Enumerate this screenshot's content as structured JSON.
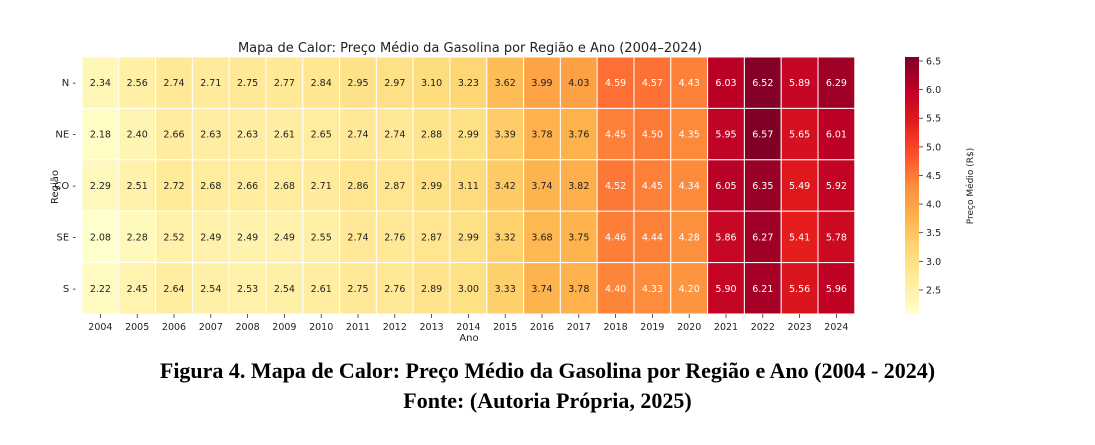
{
  "chart_data": {
    "type": "heatmap",
    "title": "Mapa de Calor: Preço Médio da Gasolina por Região e Ano (2004–2024)",
    "xlabel": "Ano",
    "ylabel": "Região",
    "x": [
      "2004",
      "2005",
      "2006",
      "2007",
      "2008",
      "2009",
      "2010",
      "2011",
      "2012",
      "2013",
      "2014",
      "2015",
      "2016",
      "2017",
      "2018",
      "2019",
      "2020",
      "2021",
      "2022",
      "2023",
      "2024"
    ],
    "y": [
      "N",
      "NE",
      "CO",
      "SE",
      "S"
    ],
    "values": [
      [
        2.34,
        2.56,
        2.74,
        2.71,
        2.75,
        2.77,
        2.84,
        2.95,
        2.97,
        3.1,
        3.23,
        3.62,
        3.99,
        4.03,
        4.59,
        4.57,
        4.43,
        6.03,
        6.52,
        5.89,
        6.29
      ],
      [
        2.18,
        2.4,
        2.66,
        2.63,
        2.63,
        2.61,
        2.65,
        2.74,
        2.74,
        2.88,
        2.99,
        3.39,
        3.78,
        3.76,
        4.45,
        4.5,
        4.35,
        5.95,
        6.57,
        5.65,
        6.01
      ],
      [
        2.29,
        2.51,
        2.72,
        2.68,
        2.66,
        2.68,
        2.71,
        2.86,
        2.87,
        2.99,
        3.11,
        3.42,
        3.74,
        3.82,
        4.52,
        4.45,
        4.34,
        6.05,
        6.35,
        5.49,
        5.92
      ],
      [
        2.08,
        2.28,
        2.52,
        2.49,
        2.49,
        2.49,
        2.55,
        2.74,
        2.76,
        2.87,
        2.99,
        3.32,
        3.68,
        3.75,
        4.46,
        4.44,
        4.28,
        5.86,
        6.27,
        5.41,
        5.78
      ],
      [
        2.22,
        2.45,
        2.64,
        2.54,
        2.53,
        2.54,
        2.61,
        2.75,
        2.76,
        2.89,
        3.0,
        3.33,
        3.74,
        3.78,
        4.4,
        4.33,
        4.2,
        5.9,
        6.21,
        5.56,
        5.96
      ]
    ],
    "colorbar": {
      "label": "Preço Médio (R$)",
      "range": [
        2.08,
        6.57
      ],
      "ticks": [
        "2.5",
        "3.0",
        "3.5",
        "4.0",
        "4.5",
        "5.0",
        "5.5",
        "6.0",
        "6.5"
      ],
      "colormap": "YlOrRd"
    },
    "colormap_stops": [
      "#ffffcc",
      "#ffeda0",
      "#fed976",
      "#feb24c",
      "#fd8d3c",
      "#fc4e2a",
      "#e31a1c",
      "#bd0026",
      "#800026"
    ]
  },
  "caption": {
    "line1": "Figura 4. Mapa de Calor: Preço Médio da Gasolina por Região e Ano (2004 - 2024)",
    "line2": "Fonte: (Autoria Própria, 2025)"
  }
}
